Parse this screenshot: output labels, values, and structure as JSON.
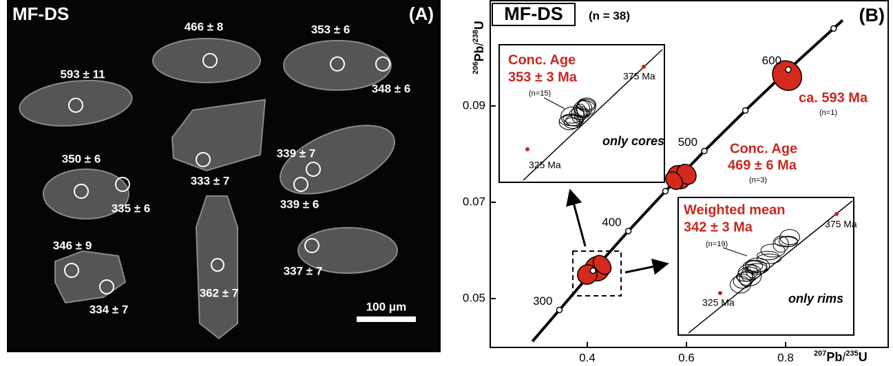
{
  "panel_a": {
    "title": "MF-DS",
    "panel_label": "(A)",
    "spot_labels": [
      "466 ± 8",
      "353 ± 6",
      "348 ± 6",
      "593 ± 11",
      "333 ± 7",
      "339 ± 7",
      "339 ± 6",
      "350 ± 6",
      "335 ± 6",
      "346 ± 9",
      "334 ± 7",
      "362 ± 7",
      "337 ± 7"
    ],
    "scale_bar": "100 μm"
  },
  "panel_b": {
    "title": "MF-DS",
    "n_label": "(n = 38)",
    "panel_label": "(B)",
    "y_label": [
      "206",
      "Pb",
      "/",
      "238",
      "U"
    ],
    "x_label": [
      "207",
      "Pb",
      "/",
      "235",
      "U"
    ],
    "xlim": [
      0.2,
      1.0
    ],
    "ylim": [
      0.04,
      0.112
    ],
    "xticks": [
      0.4,
      0.6,
      0.8
    ],
    "yticks": [
      0.05,
      0.07,
      0.09
    ],
    "concordia": {
      "x": [
        0.3437,
        0.4116,
        0.4828,
        0.5576,
        0.6362,
        0.7189,
        0.8056,
        0.8969
      ],
      "y": [
        0.04764,
        0.0558,
        0.06402,
        0.0723,
        0.08065,
        0.08906,
        0.09754,
        0.10609
      ],
      "labels": [
        300,
        null,
        400,
        null,
        500,
        null,
        600,
        null
      ]
    },
    "ellipses": [
      {
        "x": 0.803,
        "y": 0.0963,
        "x_err": 0.028,
        "y_err": 0.0032
      },
      {
        "x": 0.585,
        "y": 0.0752,
        "x_err": 0.022,
        "y_err": 0.0025
      },
      {
        "x": 0.6,
        "y": 0.0758,
        "x_err": 0.018,
        "y_err": 0.0022
      },
      {
        "x": 0.575,
        "y": 0.0745,
        "x_err": 0.015,
        "y_err": 0.002
      },
      {
        "x": 0.42,
        "y": 0.0562,
        "x_err": 0.025,
        "y_err": 0.0025
      },
      {
        "x": 0.4,
        "y": 0.055,
        "x_err": 0.02,
        "y_err": 0.002
      },
      {
        "x": 0.43,
        "y": 0.057,
        "x_err": 0.015,
        "y_err": 0.0022
      }
    ],
    "annotations": {
      "old_age": "ca. 593 Ma",
      "old_n": "(n=1)",
      "mid_title": "Conc. Age",
      "mid_age": "469 ± 6 Ma",
      "mid_n": "(n=3)"
    },
    "inset_cores": {
      "title": "Conc. Age",
      "age": "353 ± 3 Ma",
      "n": "(n=15)",
      "upper": "375 Ma",
      "lower": "325 Ma",
      "note": "only cores"
    },
    "inset_rims": {
      "title": "Weighted mean",
      "age": "342 ± 3 Ma",
      "n": "(n=19)",
      "upper": "375 Ma",
      "lower": "325 Ma",
      "note": "only rims"
    }
  }
}
